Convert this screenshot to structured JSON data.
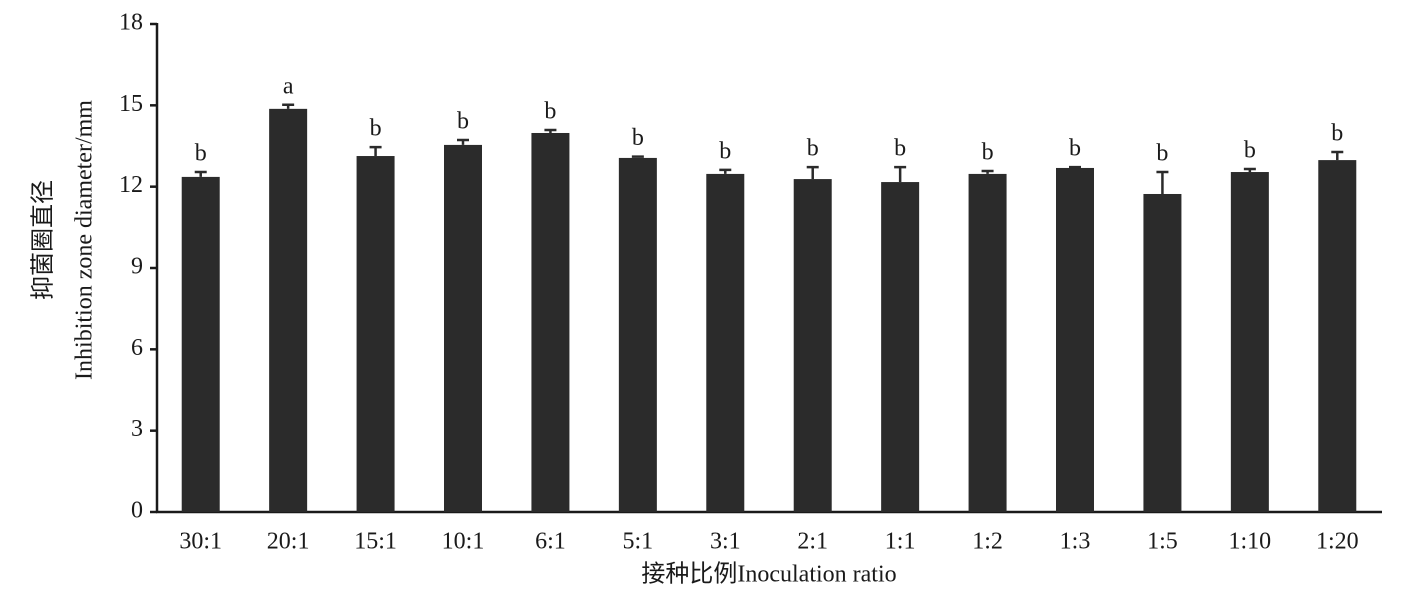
{
  "chart_data": {
    "type": "bar",
    "x_label": "接种比例Inoculation ratio",
    "y_label": [
      "抑菌圈直径",
      "Inhibition zone diameter/mm"
    ],
    "categories": [
      "30:1",
      "20:1",
      "15:1",
      "10:1",
      "6:1",
      "5:1",
      "3:1",
      "2:1",
      "1:1",
      "1:2",
      "1:3",
      "1:5",
      "1:10",
      "1:20"
    ],
    "values": [
      12.36,
      14.87,
      13.13,
      13.54,
      13.98,
      13.06,
      12.47,
      12.28,
      12.17,
      12.47,
      12.69,
      11.73,
      12.54,
      12.98
    ],
    "errors": [
      0.18,
      0.15,
      0.33,
      0.18,
      0.11,
      0.05,
      0.15,
      0.44,
      0.55,
      0.11,
      0.03,
      0.81,
      0.11,
      0.3
    ],
    "letters": [
      "b",
      "a",
      "b",
      "b",
      "b",
      "b",
      "b",
      "b",
      "b",
      "b",
      "b",
      "b",
      "b",
      "b"
    ],
    "color": "#2b2b2b",
    "ylim": [
      0,
      18
    ],
    "yticks": [
      0,
      3,
      6,
      9,
      12,
      15,
      18
    ],
    "grid": false
  }
}
